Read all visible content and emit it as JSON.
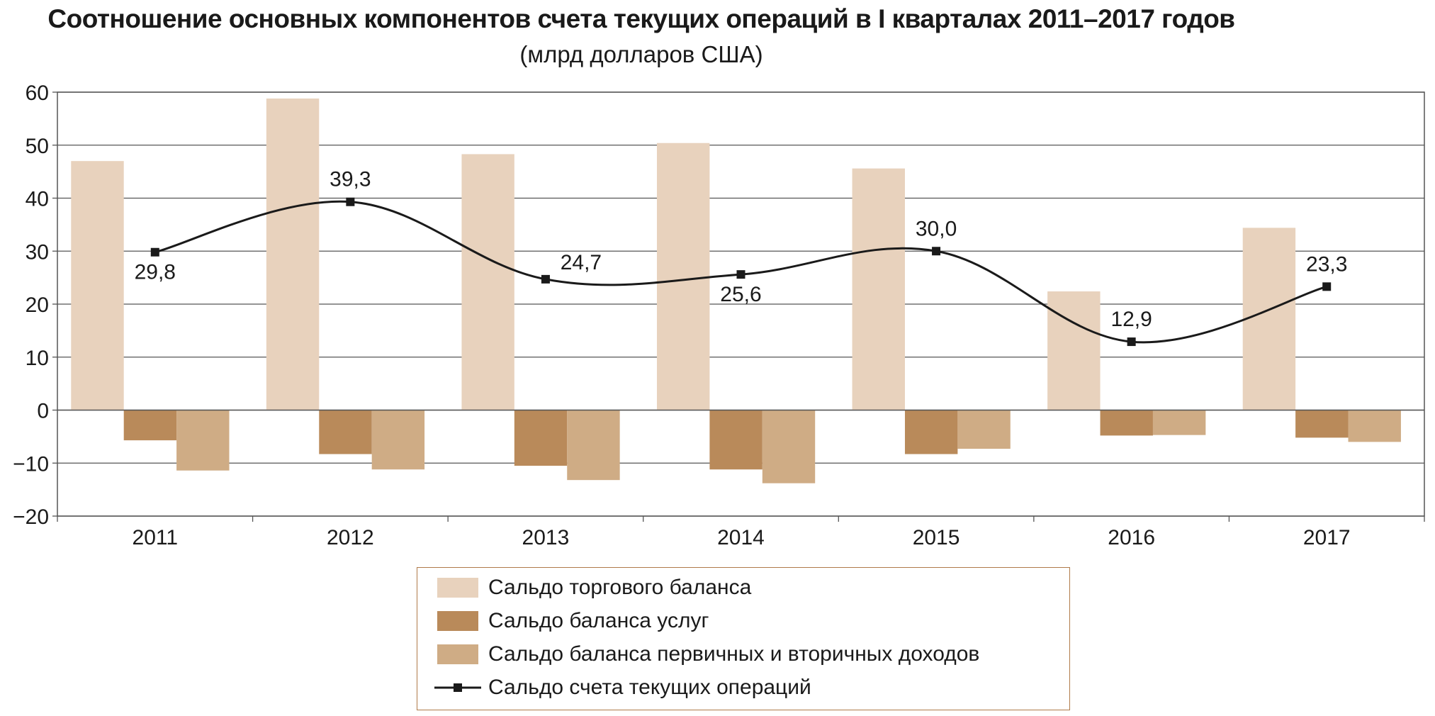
{
  "title": "Соотношение основных компонентов счета текущих операций в I кварталах 2011–2017 годов",
  "subtitle": "(млрд долларов США)",
  "chart_data": {
    "type": "bar",
    "categories": [
      "2011",
      "2012",
      "2013",
      "2014",
      "2015",
      "2016",
      "2017"
    ],
    "ylim": [
      -20,
      60
    ],
    "yticks": [
      60,
      50,
      40,
      30,
      20,
      10,
      0,
      -10,
      -20
    ],
    "ytick_labels": [
      "60",
      "50",
      "40",
      "30",
      "20",
      "10",
      "0",
      "−10",
      "−20"
    ],
    "grid": true,
    "series": [
      {
        "name": "Сальдо торгового баланса",
        "kind": "bar",
        "color": "#e8d2bd",
        "values": [
          47.0,
          58.8,
          48.3,
          50.4,
          45.6,
          22.4,
          34.4
        ]
      },
      {
        "name": "Сальдо баланса услуг",
        "kind": "bar",
        "color": "#b98a5a",
        "values": [
          -5.7,
          -8.3,
          -10.5,
          -11.2,
          -8.3,
          -4.8,
          -5.2
        ]
      },
      {
        "name": "Сальдо баланса первичных и вторичных доходов",
        "kind": "bar",
        "color": "#cfac85",
        "values": [
          -11.4,
          -11.2,
          -13.2,
          -13.8,
          -7.3,
          -4.7,
          -6.0
        ]
      },
      {
        "name": "Сальдо счета текущих операций",
        "kind": "line",
        "color": "#1a1a1a",
        "values": [
          29.8,
          39.3,
          24.7,
          25.6,
          30.0,
          12.9,
          23.3
        ],
        "labels": [
          "29,8",
          "39,3",
          "24,7",
          "25,6",
          "30,0",
          "12,9",
          "23,3"
        ]
      }
    ],
    "legend_position": "bottom-center"
  }
}
